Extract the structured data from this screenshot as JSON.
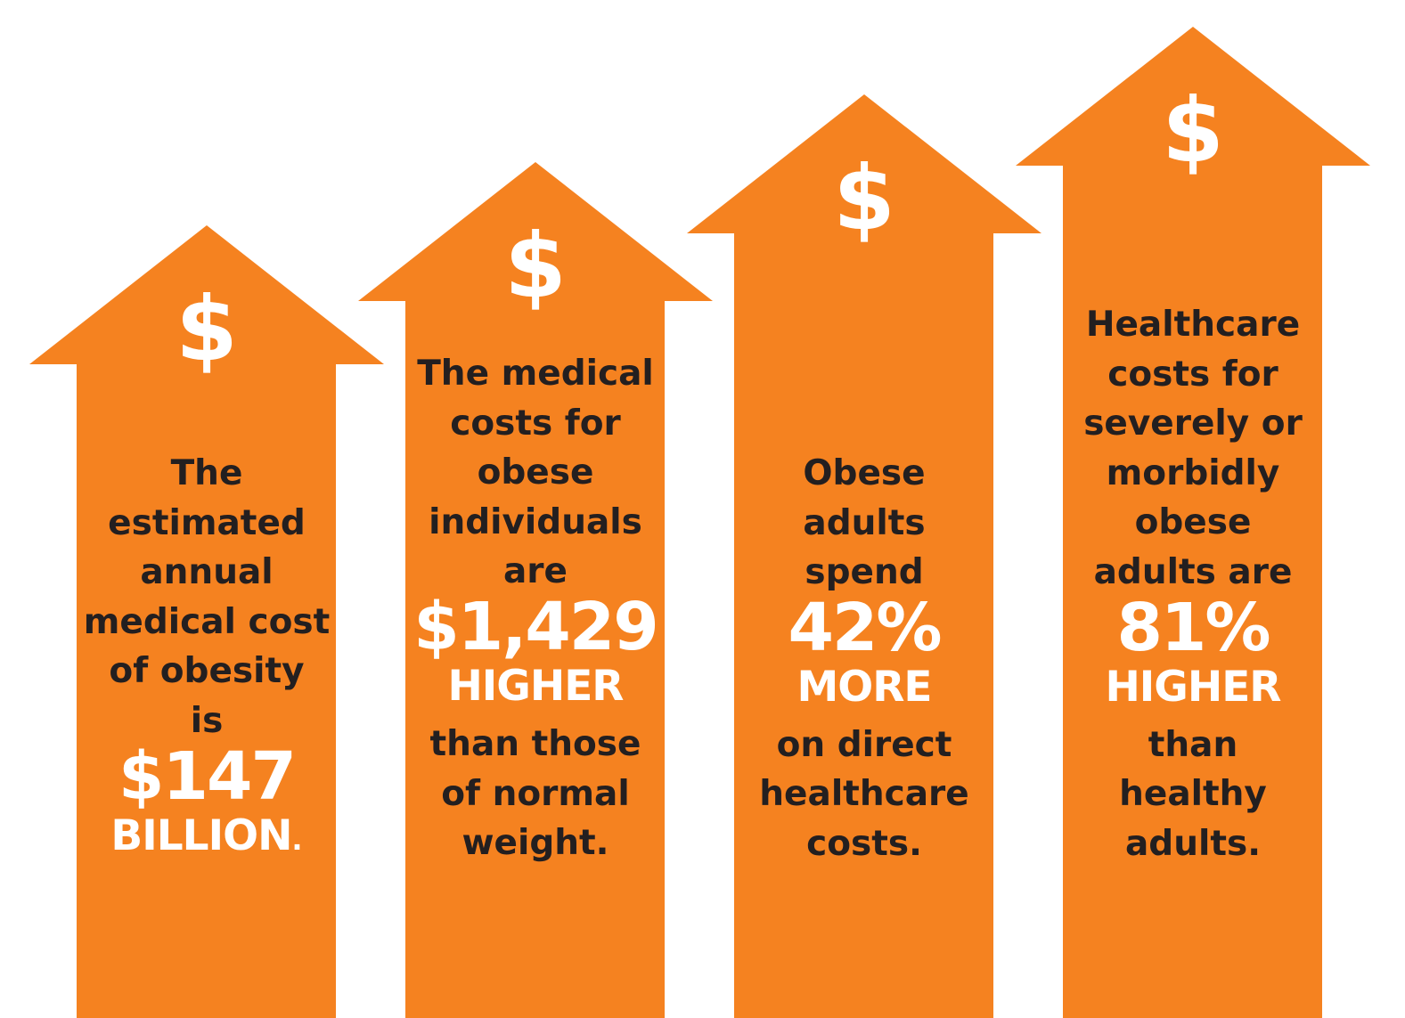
{
  "colors": {
    "arrow": "#f58220",
    "text_dark": "#231f20",
    "text_light": "#ffffff"
  },
  "arrows": [
    {
      "icon": "$",
      "lines_before": [
        "The",
        "estimated",
        "annual",
        "medical cost",
        "of obesity",
        "is"
      ],
      "figure": "$147",
      "emphasis": "BILLION",
      "emphasis_suffix": ".",
      "lines_after": []
    },
    {
      "icon": "$",
      "lines_before": [
        "The medical",
        "costs for",
        "obese",
        "individuals",
        "are"
      ],
      "figure": "$1,429",
      "emphasis": "HIGHER",
      "emphasis_suffix": "",
      "lines_after": [
        "than those",
        "of normal",
        "weight."
      ]
    },
    {
      "icon": "$",
      "lines_before": [
        "Obese",
        "adults",
        "spend"
      ],
      "figure": "42%",
      "emphasis": "MORE",
      "emphasis_suffix": "",
      "lines_after": [
        "on direct",
        "healthcare",
        "costs."
      ]
    },
    {
      "icon": "$",
      "lines_before": [
        "Healthcare",
        "costs for",
        "severely or",
        "morbidly",
        "obese",
        "adults are"
      ],
      "figure": "81%",
      "emphasis": "HIGHER",
      "emphasis_suffix": "",
      "lines_after": [
        "than",
        "healthy",
        "adults."
      ]
    }
  ]
}
